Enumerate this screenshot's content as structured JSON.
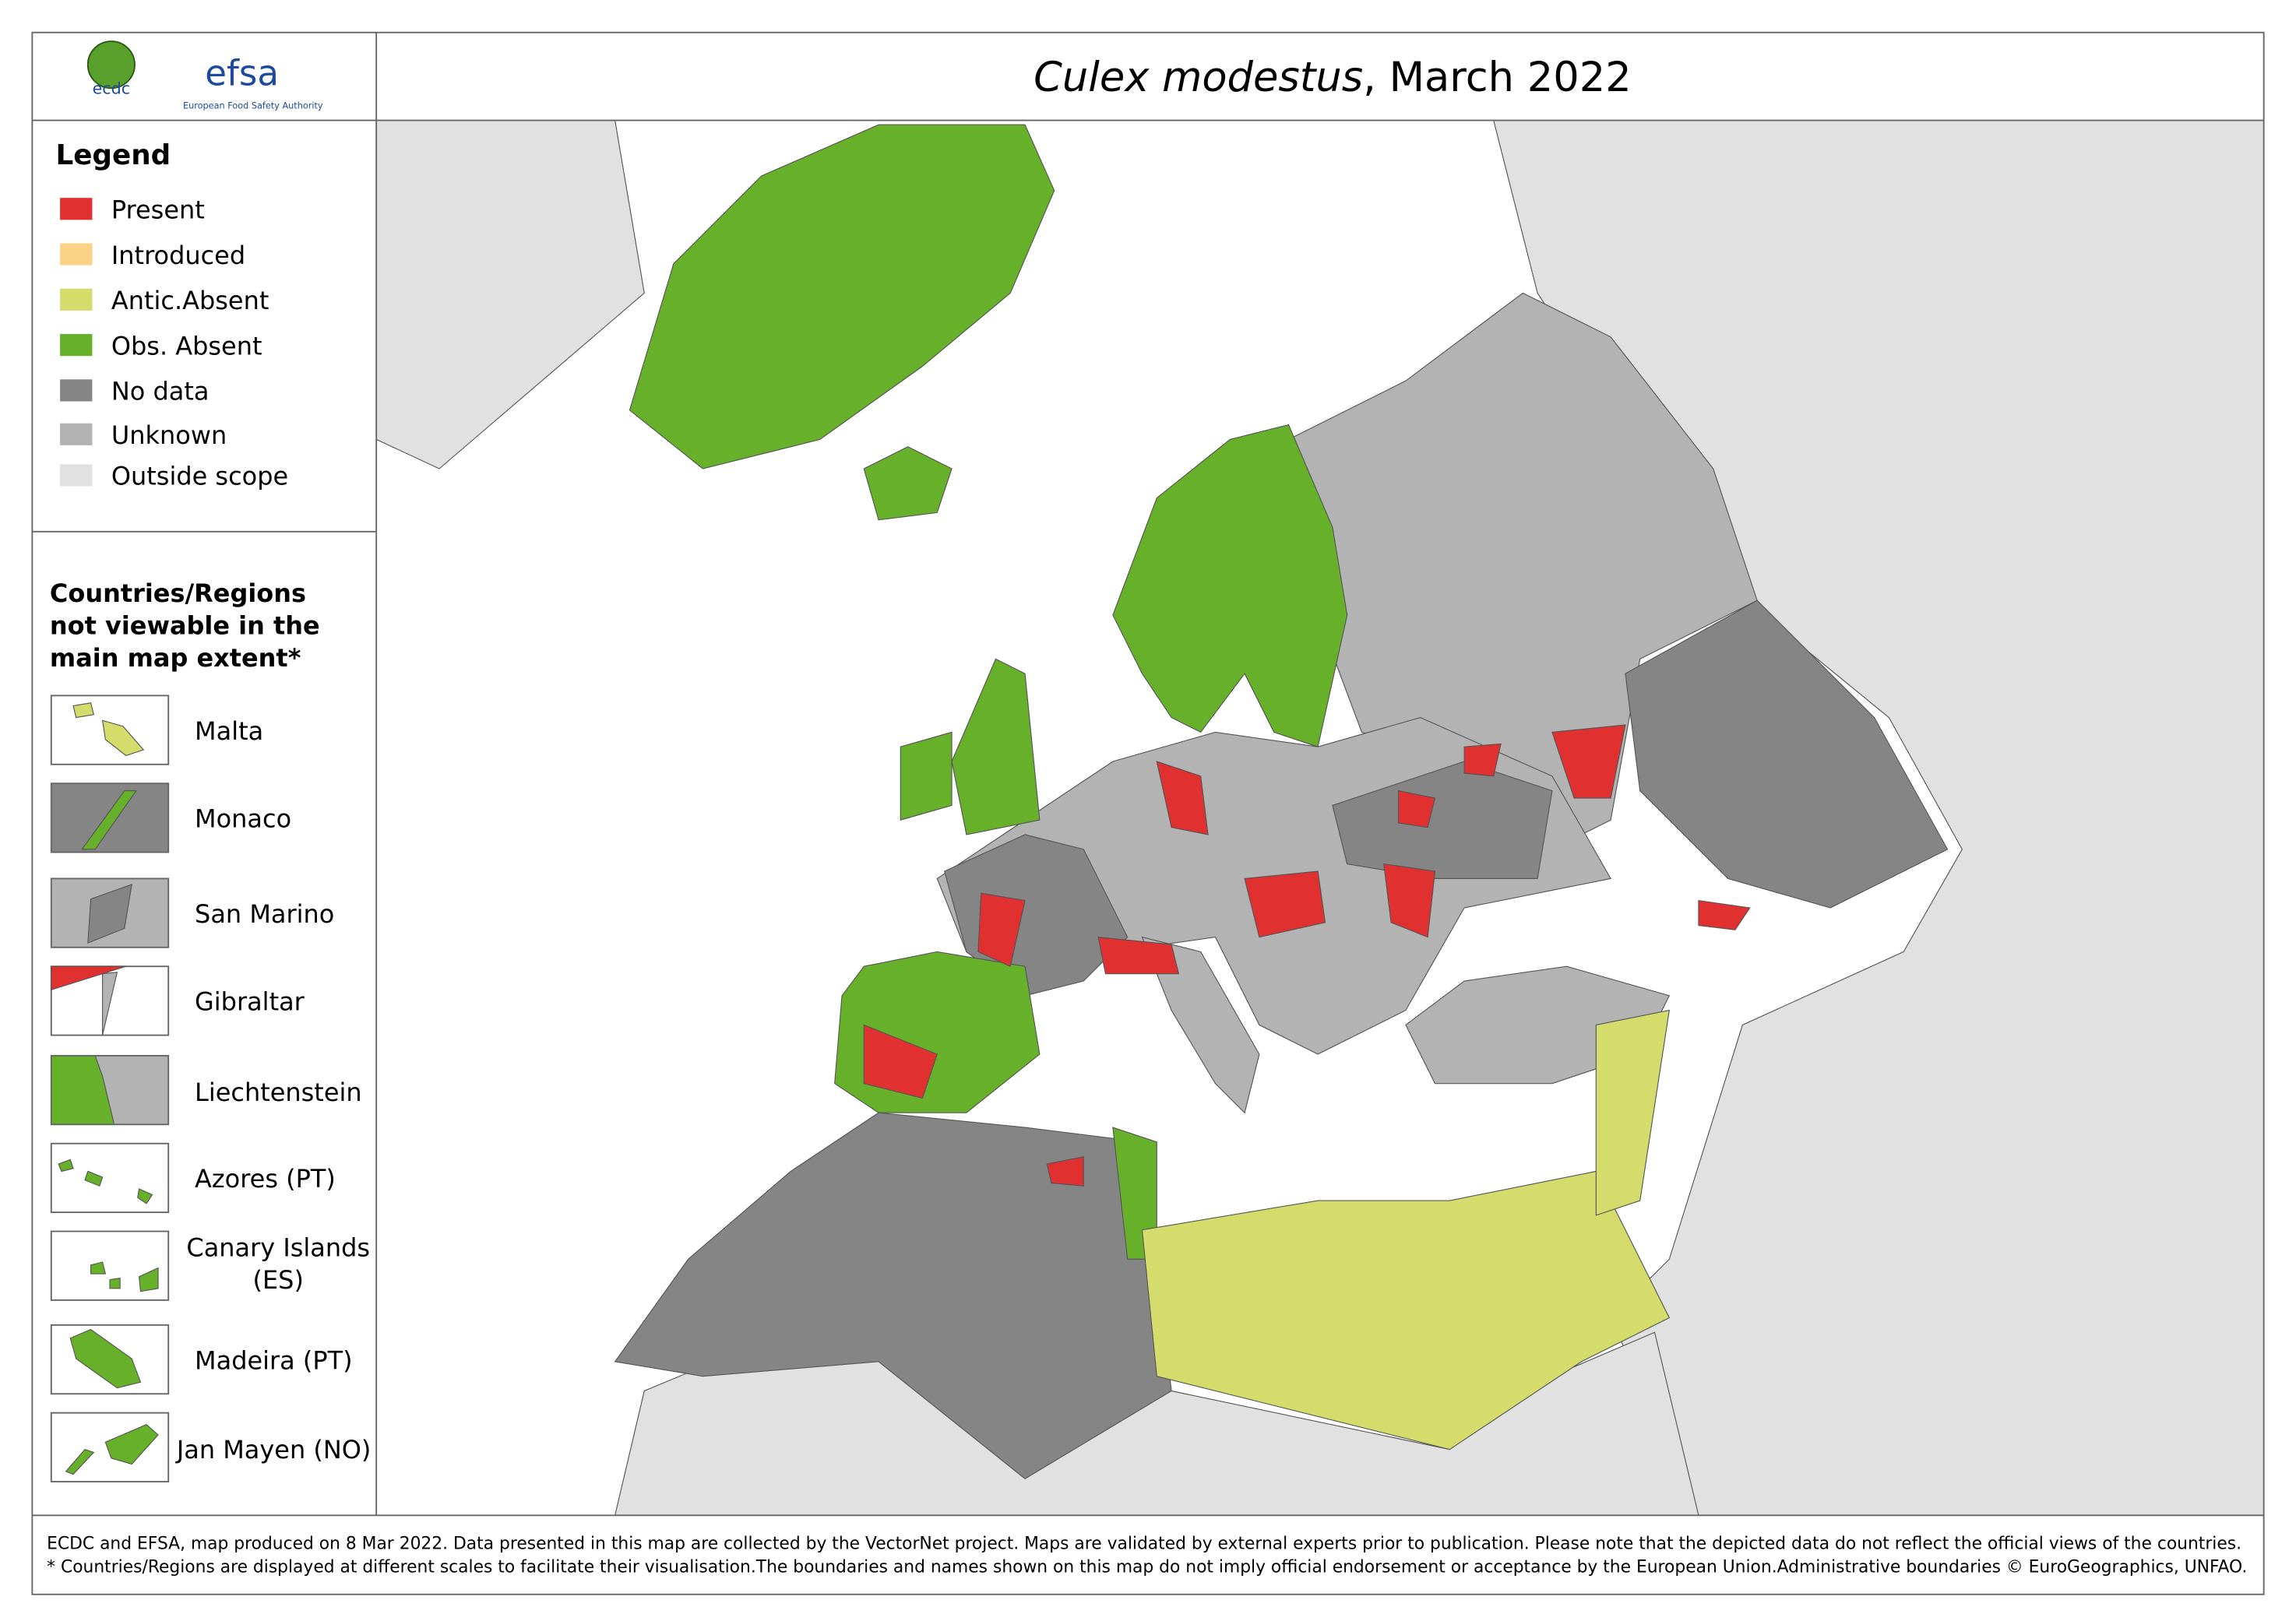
{
  "header": {
    "title_italic": "Culex modestus",
    "title_rest": ", March 2022",
    "logo_ecdc": "ecdc",
    "logo_efsa": "efsa",
    "logo_efsa_sub": "European Food Safety Authority"
  },
  "legend": {
    "title": "Legend",
    "items": [
      {
        "label": "Present",
        "color": "#e03030"
      },
      {
        "label": "Introduced",
        "color": "#fcd286"
      },
      {
        "label": "Antic.Absent",
        "color": "#d4dc6c"
      },
      {
        "label": "Obs. Absent",
        "color": "#66b02a"
      },
      {
        "label": "No data",
        "color": "#858585"
      },
      {
        "label": "Unknown",
        "color": "#b3b3b3"
      },
      {
        "label": "Outside scope",
        "color": "#e1e1e1"
      }
    ]
  },
  "insets": {
    "title": [
      "Countries/Regions",
      "not viewable in the",
      "main map extent*"
    ],
    "items": [
      {
        "label": [
          "Malta"
        ]
      },
      {
        "label": [
          "Monaco"
        ]
      },
      {
        "label": [
          "San Marino"
        ]
      },
      {
        "label": [
          "Gibraltar"
        ]
      },
      {
        "label": [
          "Liechtenstein"
        ]
      },
      {
        "label": [
          "Azores (PT)"
        ]
      },
      {
        "label": [
          "Canary Islands",
          "(ES)"
        ]
      },
      {
        "label": [
          "Madeira (PT)"
        ]
      },
      {
        "label": [
          "Jan Mayen (NO)"
        ]
      }
    ]
  },
  "footer": [
    "ECDC and EFSA, map produced on 8 Mar 2022. Data presented in this map are collected by the VectorNet project. Maps are validated by external experts prior to publication. Please note that the depicted data do not reflect the official views of the countries.",
    "* Countries/Regions are displayed at different scales to facilitate their visualisation.The boundaries and names shown on this map do not imply official endorsement or acceptance by the European Union.Administrative boundaries © EuroGeographics, UNFAO."
  ]
}
